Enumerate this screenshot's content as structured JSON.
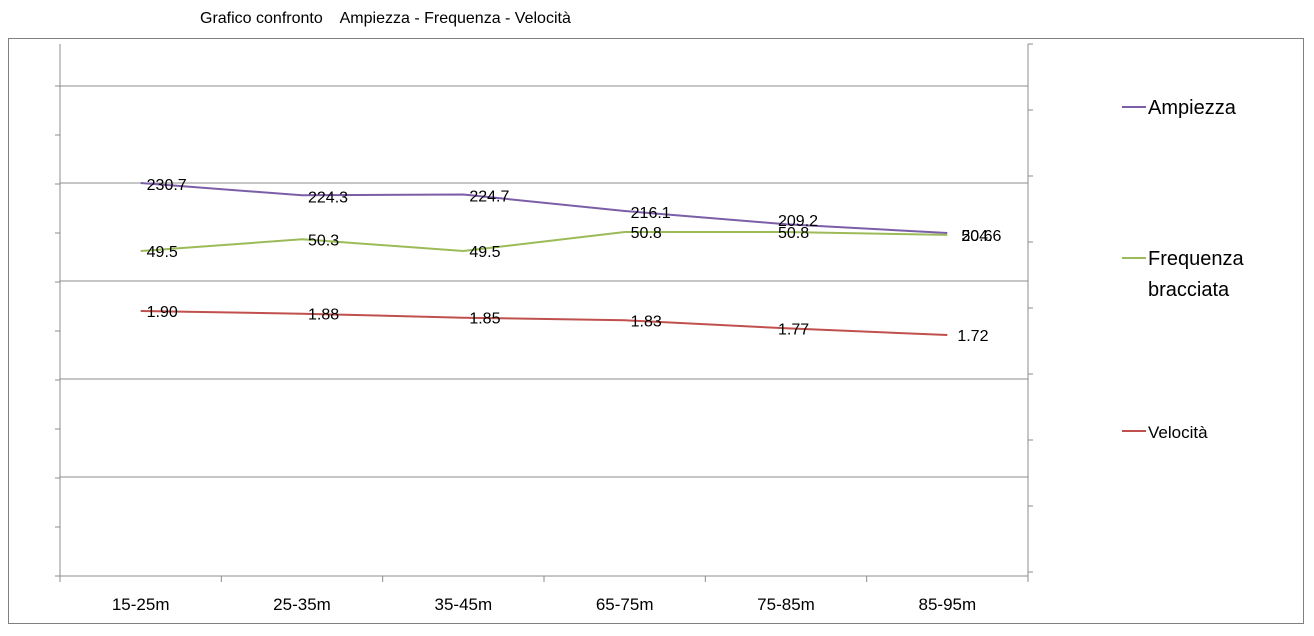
{
  "chart_data": {
    "type": "line",
    "title": "Grafico confronto    Ampiezza - Frequenza - Velocità",
    "categories": [
      "15-25m",
      "25-35m",
      "35-45m",
      "65-75m",
      "75-85m",
      "85-95m"
    ],
    "series": [
      {
        "name": "Ampiezza",
        "values": [
          230.7,
          224.3,
          224.7,
          216.1,
          209.2,
          204.6
        ],
        "labels": [
          "230.7",
          "224.3",
          "224.7",
          "216.1",
          "209.2",
          "204.6"
        ],
        "color": "#7B5EA7"
      },
      {
        "name": "Frequenza bracciata",
        "values": [
          49.5,
          50.3,
          49.5,
          50.8,
          50.8,
          50.6
        ],
        "labels": [
          "49.5",
          "50.3",
          "49.5",
          "50.8",
          "50.8",
          "50.6"
        ],
        "color": "#9BBB59"
      },
      {
        "name": "Velocità",
        "values": [
          1.9,
          1.88,
          1.85,
          1.83,
          1.77,
          1.72
        ],
        "labels": [
          "1.90",
          "1.88",
          "1.85",
          "1.83",
          "1.77",
          "1.72"
        ],
        "color": "#C0504D"
      }
    ],
    "grid": true,
    "legend": "right"
  }
}
